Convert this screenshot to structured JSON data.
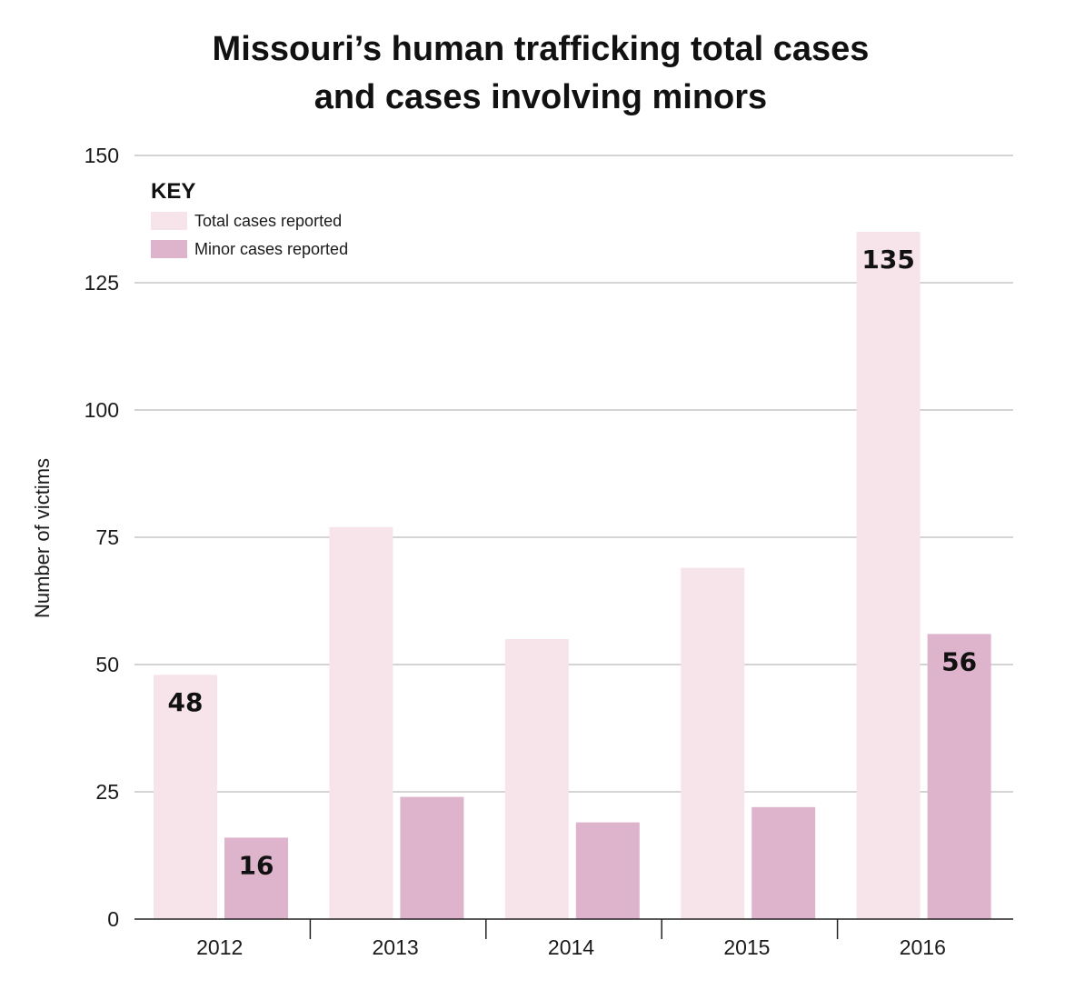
{
  "chart_data": {
    "type": "bar",
    "title_lines": [
      "Missouri’s human trafficking total cases",
      "and cases involving minors"
    ],
    "xlabel": "",
    "ylabel": "Number of victims",
    "categories": [
      "2012",
      "2013",
      "2014",
      "2015",
      "2016"
    ],
    "ylim": [
      0,
      150
    ],
    "yticks": [
      0,
      25,
      50,
      75,
      100,
      125,
      150
    ],
    "grid": true,
    "legend": {
      "title": "KEY",
      "placement": "top-left"
    },
    "series": [
      {
        "name": "Total cases reported",
        "color": "#f6e4ea",
        "values": [
          48,
          77,
          55,
          69,
          135
        ],
        "labels": [
          "48",
          "",
          "",
          "",
          "135"
        ]
      },
      {
        "name": "Minor cases reported",
        "color": "#deb4cc",
        "values": [
          16,
          24,
          19,
          22,
          56
        ],
        "labels": [
          "16",
          "",
          "",
          "",
          "56"
        ]
      }
    ]
  }
}
